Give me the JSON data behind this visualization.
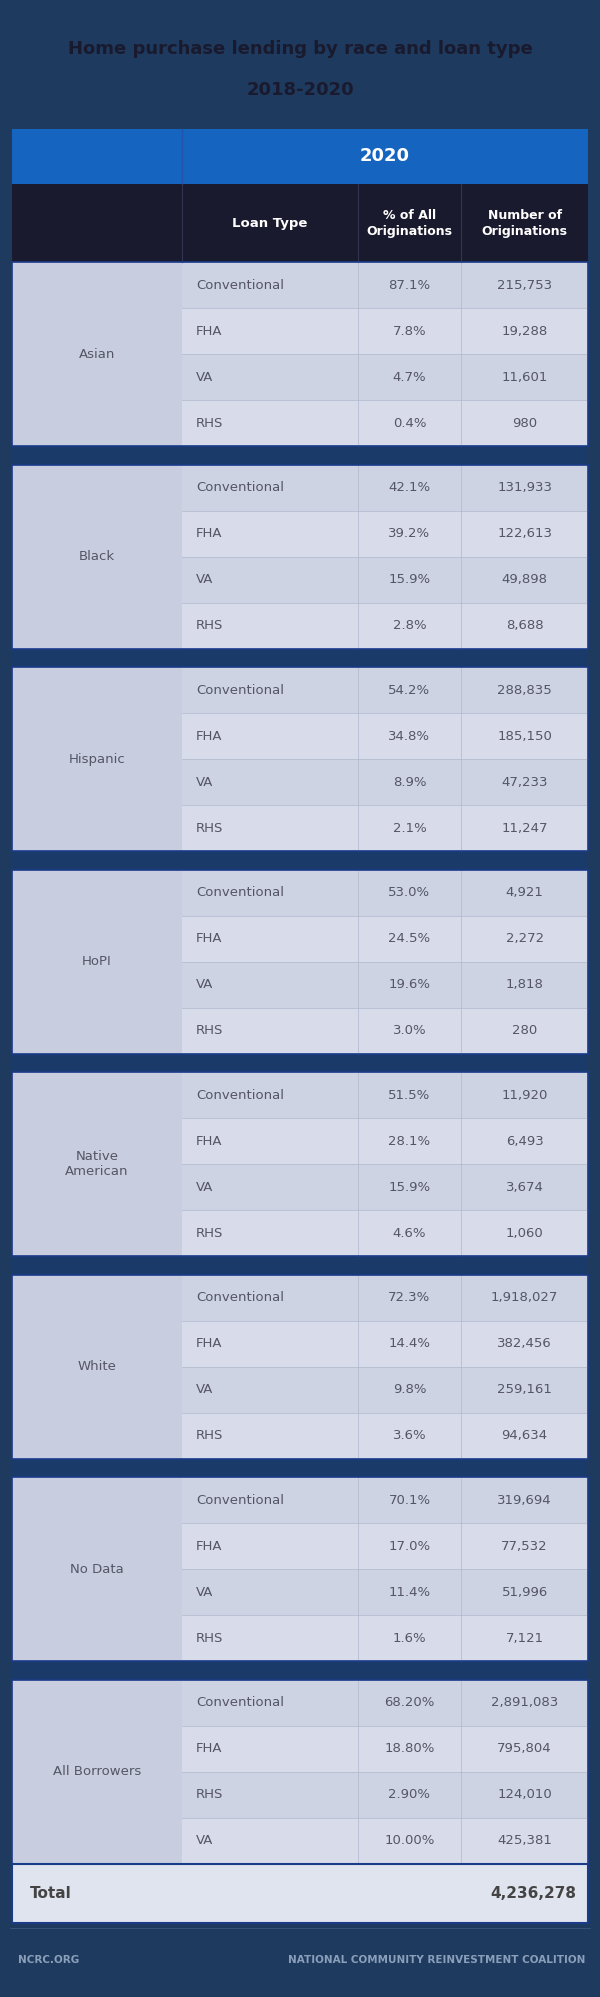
{
  "title_line1": "Home purchase lending by race and loan type",
  "title_line2": "2018-2020",
  "title_bg": "#1e3a5f",
  "title_text_color": "#1a1a2e",
  "year_header": "2020",
  "year_header_bg": "#1565c0",
  "year_header_text": "#ffffff",
  "col_header_bg": "#1a1a2e",
  "col_header_text": "#ffffff",
  "col_headers": [
    "Loan Type",
    "% of All\nOriginations",
    "Number of\nOriginations"
  ],
  "footer_bg": "#1e3a5f",
  "footer_text_color": "#8a9fba",
  "footer_left": "NCRC.ORG",
  "footer_right": "NATIONAL COMMUNITY REINVESTMENT COALITION",
  "total_label": "Total",
  "total_value": "4,236,278",
  "total_bg": "#e0e4ee",
  "total_text": "#444444",
  "row_bg_odd": "#cdd3e3",
  "row_bg_even": "#d8dcea",
  "race_bg": "#c8cedf",
  "data_text_color": "#555566",
  "race_text_color": "#555566",
  "separator_color": "#1a3a6a",
  "border_color": "#1a3a8a",
  "divider_color": "#b0b8cc",
  "groups": [
    {
      "race": "Asian",
      "rows": [
        {
          "loan": "Conventional",
          "pct": "87.1%",
          "num": "215,753"
        },
        {
          "loan": "FHA",
          "pct": "7.8%",
          "num": "19,288"
        },
        {
          "loan": "VA",
          "pct": "4.7%",
          "num": "11,601"
        },
        {
          "loan": "RHS",
          "pct": "0.4%",
          "num": "980"
        }
      ]
    },
    {
      "race": "Black",
      "rows": [
        {
          "loan": "Conventional",
          "pct": "42.1%",
          "num": "131,933"
        },
        {
          "loan": "FHA",
          "pct": "39.2%",
          "num": "122,613"
        },
        {
          "loan": "VA",
          "pct": "15.9%",
          "num": "49,898"
        },
        {
          "loan": "RHS",
          "pct": "2.8%",
          "num": "8,688"
        }
      ]
    },
    {
      "race": "Hispanic",
      "rows": [
        {
          "loan": "Conventional",
          "pct": "54.2%",
          "num": "288,835"
        },
        {
          "loan": "FHA",
          "pct": "34.8%",
          "num": "185,150"
        },
        {
          "loan": "VA",
          "pct": "8.9%",
          "num": "47,233"
        },
        {
          "loan": "RHS",
          "pct": "2.1%",
          "num": "11,247"
        }
      ]
    },
    {
      "race": "HoPI",
      "rows": [
        {
          "loan": "Conventional",
          "pct": "53.0%",
          "num": "4,921"
        },
        {
          "loan": "FHA",
          "pct": "24.5%",
          "num": "2,272"
        },
        {
          "loan": "VA",
          "pct": "19.6%",
          "num": "1,818"
        },
        {
          "loan": "RHS",
          "pct": "3.0%",
          "num": "280"
        }
      ]
    },
    {
      "race": "Native\nAmerican",
      "rows": [
        {
          "loan": "Conventional",
          "pct": "51.5%",
          "num": "11,920"
        },
        {
          "loan": "FHA",
          "pct": "28.1%",
          "num": "6,493"
        },
        {
          "loan": "VA",
          "pct": "15.9%",
          "num": "3,674"
        },
        {
          "loan": "RHS",
          "pct": "4.6%",
          "num": "1,060"
        }
      ]
    },
    {
      "race": "White",
      "rows": [
        {
          "loan": "Conventional",
          "pct": "72.3%",
          "num": "1,918,027"
        },
        {
          "loan": "FHA",
          "pct": "14.4%",
          "num": "382,456"
        },
        {
          "loan": "VA",
          "pct": "9.8%",
          "num": "259,161"
        },
        {
          "loan": "RHS",
          "pct": "3.6%",
          "num": "94,634"
        }
      ]
    },
    {
      "race": "No Data",
      "rows": [
        {
          "loan": "Conventional",
          "pct": "70.1%",
          "num": "319,694"
        },
        {
          "loan": "FHA",
          "pct": "17.0%",
          "num": "77,532"
        },
        {
          "loan": "VA",
          "pct": "11.4%",
          "num": "51,996"
        },
        {
          "loan": "RHS",
          "pct": "1.6%",
          "num": "7,121"
        }
      ]
    },
    {
      "race": "All Borrowers",
      "rows": [
        {
          "loan": "Conventional",
          "pct": "68.20%",
          "num": "2,891,083"
        },
        {
          "loan": "FHA",
          "pct": "18.80%",
          "num": "795,804"
        },
        {
          "loan": "RHS",
          "pct": "2.90%",
          "num": "124,010"
        },
        {
          "loan": "VA",
          "pct": "10.00%",
          "num": "425,381"
        }
      ]
    }
  ]
}
